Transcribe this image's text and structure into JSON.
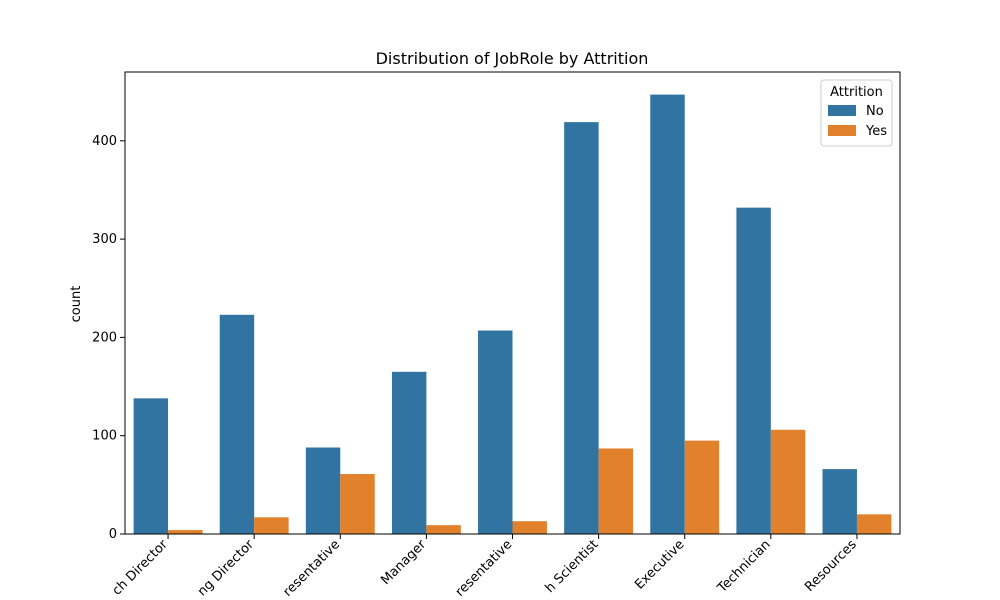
{
  "chart_data": {
    "type": "bar",
    "title": "Distribution of JobRole by Attrition",
    "xlabel": "",
    "ylabel": "count",
    "ylim": [
      0,
      470
    ],
    "yticks": [
      0,
      100,
      200,
      300,
      400
    ],
    "categories": [
      "Research Director",
      "Manufacturing Director",
      "Healthcare Representative",
      "Manager",
      "Sales Representative",
      "Research Scientist",
      "Sales Executive",
      "Laboratory Technician",
      "Human Resources"
    ],
    "visible_category_labels": [
      "ch Director",
      "ng Director",
      "resentative",
      "Manager",
      "resentative",
      "h Scientist",
      "Executive",
      "Technician",
      "Resources"
    ],
    "series": [
      {
        "name": "No",
        "color": "#3274a1",
        "values": [
          138,
          223,
          88,
          165,
          207,
          419,
          447,
          332,
          66
        ]
      },
      {
        "name": "Yes",
        "color": "#e1812c",
        "values": [
          4,
          17,
          61,
          9,
          13,
          87,
          95,
          106,
          20
        ]
      }
    ],
    "legend": {
      "title": "Attrition",
      "placement": "upper right"
    },
    "grid": false
  }
}
